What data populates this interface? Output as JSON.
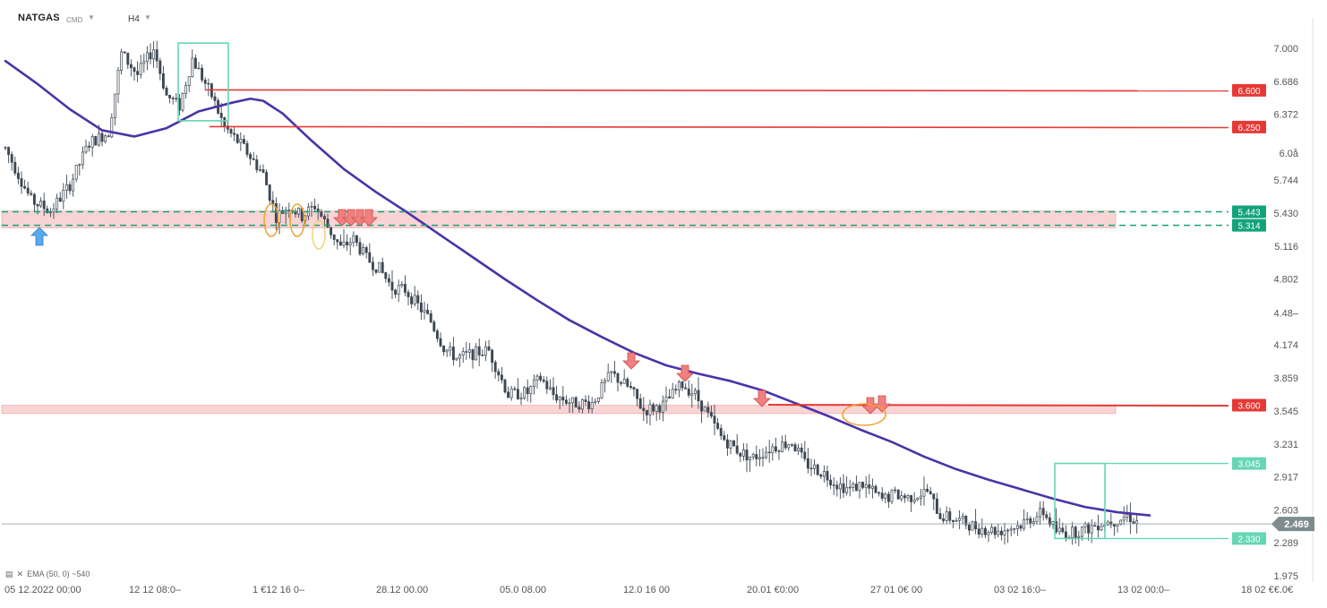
{
  "header": {
    "symbol": "NATGAS",
    "instrument_type": "CMD",
    "timeframe": "H4"
  },
  "indicator": {
    "label": "EMA (50, 0) ~540"
  },
  "colors": {
    "ema": "#4b33a8",
    "resistance": "#e53935",
    "support_zone": "#f5c6c6",
    "dashed_support": "#12a37a",
    "box": "#66d6b4",
    "arrow_down": "#f08080",
    "arrow_up": "#5aa9ee",
    "candle": "#3d4752",
    "last_price": "#7f8c8d"
  },
  "chart_data": {
    "type": "candlestick",
    "title": "",
    "y_ticks": [
      "7.000",
      "6.686",
      "6.372",
      "6.0å",
      "5.744",
      "5.430",
      "5.116",
      "4.802",
      "4.48–",
      "4.174",
      "3.859",
      "3.545",
      "3.231",
      "2.917",
      "2.603",
      "2.289",
      "1.975"
    ],
    "x_ticks": [
      "05 12.2022  00:00",
      "12 12  08:0–",
      "1 €12  16 0–",
      "28.12  00.00",
      "05.0   08.00",
      "12.0    16 00",
      "20.01  €0:00",
      "27 01  0€ 00",
      "03 02  16:0–",
      "13 02  00:0–",
      "18 02  €€.0€"
    ],
    "ylim": [
      1.975,
      7.0
    ],
    "horizontal_levels": [
      {
        "label": "6.600",
        "value": 6.6,
        "kind": "resistance"
      },
      {
        "label": "6.250",
        "value": 6.25,
        "kind": "resistance"
      },
      {
        "label": "5.443",
        "value": 5.443,
        "kind": "support-dashed"
      },
      {
        "label": "5.314",
        "value": 5.314,
        "kind": "support-dashed"
      },
      {
        "label": "3.600",
        "value": 3.6,
        "kind": "resistance"
      },
      {
        "label": "3.045",
        "value": 3.045,
        "kind": "box-top"
      },
      {
        "label": "2.330",
        "value": 2.33,
        "kind": "box-bottom"
      }
    ],
    "zones": [
      {
        "from": 5.29,
        "to": 5.45
      },
      {
        "from": 3.52,
        "to": 3.6
      }
    ],
    "last_price": "2.469",
    "ema_series": [
      [
        0,
        6.88
      ],
      [
        10,
        6.66
      ],
      [
        20,
        6.42
      ],
      [
        30,
        6.22
      ],
      [
        40,
        6.16
      ],
      [
        50,
        6.24
      ],
      [
        60,
        6.4
      ],
      [
        70,
        6.48
      ],
      [
        76,
        6.52
      ],
      [
        80,
        6.5
      ],
      [
        86,
        6.38
      ],
      [
        95,
        6.12
      ],
      [
        105,
        5.85
      ],
      [
        115,
        5.63
      ],
      [
        125,
        5.43
      ],
      [
        135,
        5.22
      ],
      [
        145,
        5.01
      ],
      [
        155,
        4.8
      ],
      [
        165,
        4.6
      ],
      [
        175,
        4.41
      ],
      [
        185,
        4.25
      ],
      [
        195,
        4.1
      ],
      [
        205,
        3.98
      ],
      [
        215,
        3.9
      ],
      [
        225,
        3.83
      ],
      [
        235,
        3.74
      ],
      [
        245,
        3.62
      ],
      [
        255,
        3.5
      ],
      [
        265,
        3.37
      ],
      [
        275,
        3.25
      ],
      [
        285,
        3.11
      ],
      [
        295,
        2.99
      ],
      [
        305,
        2.89
      ],
      [
        315,
        2.8
      ],
      [
        325,
        2.71
      ],
      [
        335,
        2.63
      ],
      [
        345,
        2.58
      ],
      [
        355,
        2.55
      ]
    ],
    "candles": []
  }
}
